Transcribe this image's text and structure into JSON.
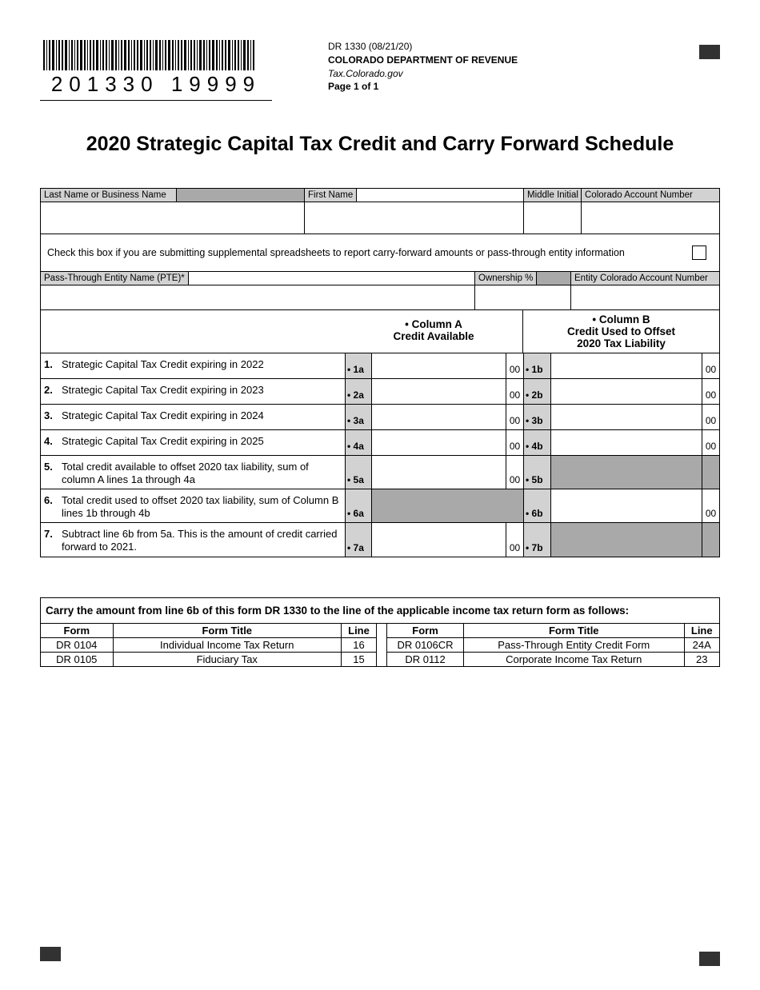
{
  "header": {
    "barcode_number": "201330  19999",
    "form_code": "DR 1330 (08/21/20)",
    "dept": "COLORADO DEPARTMENT OF REVENUE",
    "site": "Tax.Colorado.gov",
    "page": "Page 1 of 1"
  },
  "title": "2020 Strategic Capital Tax Credit and Carry Forward Schedule",
  "id_labels": {
    "last_name": "Last Name or Business Name",
    "first_name": "First Name",
    "mi": "Middle Initial",
    "acct": "Colorado Account Number"
  },
  "supp_text": "Check this box if you are submitting supplemental spreadsheets to report carry-forward amounts or pass-through entity information",
  "pte_labels": {
    "name": "Pass-Through Entity Name (PTE)*",
    "own": "Ownership %",
    "acct": "Entity Colorado Account Number"
  },
  "colheads": {
    "a": "• Column A\nCredit Available",
    "b": "• Column B\nCredit Used to Offset\n2020 Tax Liability"
  },
  "lines": [
    {
      "n": "1.",
      "desc": "Strategic Capital Tax Credit expiring in 2022",
      "ma": "• 1a",
      "mb": "• 1b",
      "centsA": "00",
      "centsB": "00",
      "shadeA": false,
      "shadeB": false,
      "hideCentsA": false
    },
    {
      "n": "2.",
      "desc": "Strategic Capital Tax Credit expiring in 2023",
      "ma": "• 2a",
      "mb": "• 2b",
      "centsA": "00",
      "centsB": "00",
      "shadeA": false,
      "shadeB": false,
      "hideCentsA": false
    },
    {
      "n": "3.",
      "desc": "Strategic Capital Tax Credit expiring in 2024",
      "ma": "• 3a",
      "mb": "• 3b",
      "centsA": "00",
      "centsB": "00",
      "shadeA": false,
      "shadeB": false,
      "hideCentsA": false
    },
    {
      "n": "4.",
      "desc": "Strategic Capital Tax Credit expiring in 2025",
      "ma": "• 4a",
      "mb": "• 4b",
      "centsA": "00",
      "centsB": "00",
      "shadeA": false,
      "shadeB": false,
      "hideCentsA": false
    },
    {
      "n": "5.",
      "desc": "Total credit available to offset 2020 tax liability, sum of column A lines 1a through 4a",
      "ma": "• 5a",
      "mb": "• 5b",
      "centsA": "00",
      "centsB": "",
      "shadeA": false,
      "shadeB": true,
      "hideCentsA": false,
      "twoline": true
    },
    {
      "n": "6.",
      "desc": "Total credit used to offset 2020 tax liability, sum of Column B lines 1b through 4b",
      "ma": "• 6a",
      "mb": "• 6b",
      "centsA": "",
      "centsB": "00",
      "shadeA": true,
      "shadeB": false,
      "hideCentsA": true,
      "twoline": true
    },
    {
      "n": "7.",
      "desc": "Subtract line 6b from 5a. This is the amount of credit carried forward to 2021.",
      "ma": "• 7a",
      "mb": "• 7b",
      "centsA": "00",
      "centsB": "",
      "shadeA": false,
      "shadeB": true,
      "hideCentsA": false,
      "twoline": true
    }
  ],
  "carry": {
    "head": "Carry the amount from line 6b of this form DR 1330 to the line of the applicable income tax return form as follows:",
    "th": {
      "form": "Form",
      "title": "Form Title",
      "line": "Line"
    },
    "left": [
      {
        "form": "DR 0104",
        "title": "Individual Income Tax Return",
        "line": "16"
      },
      {
        "form": "DR 0105",
        "title": "Fiduciary Tax",
        "line": "15"
      }
    ],
    "right": [
      {
        "form": "DR 0106CR",
        "title": "Pass-Through Entity Credit Form",
        "line": "24A"
      },
      {
        "form": "DR 0112",
        "title": "Corporate Income Tax Return",
        "line": "23"
      }
    ]
  }
}
